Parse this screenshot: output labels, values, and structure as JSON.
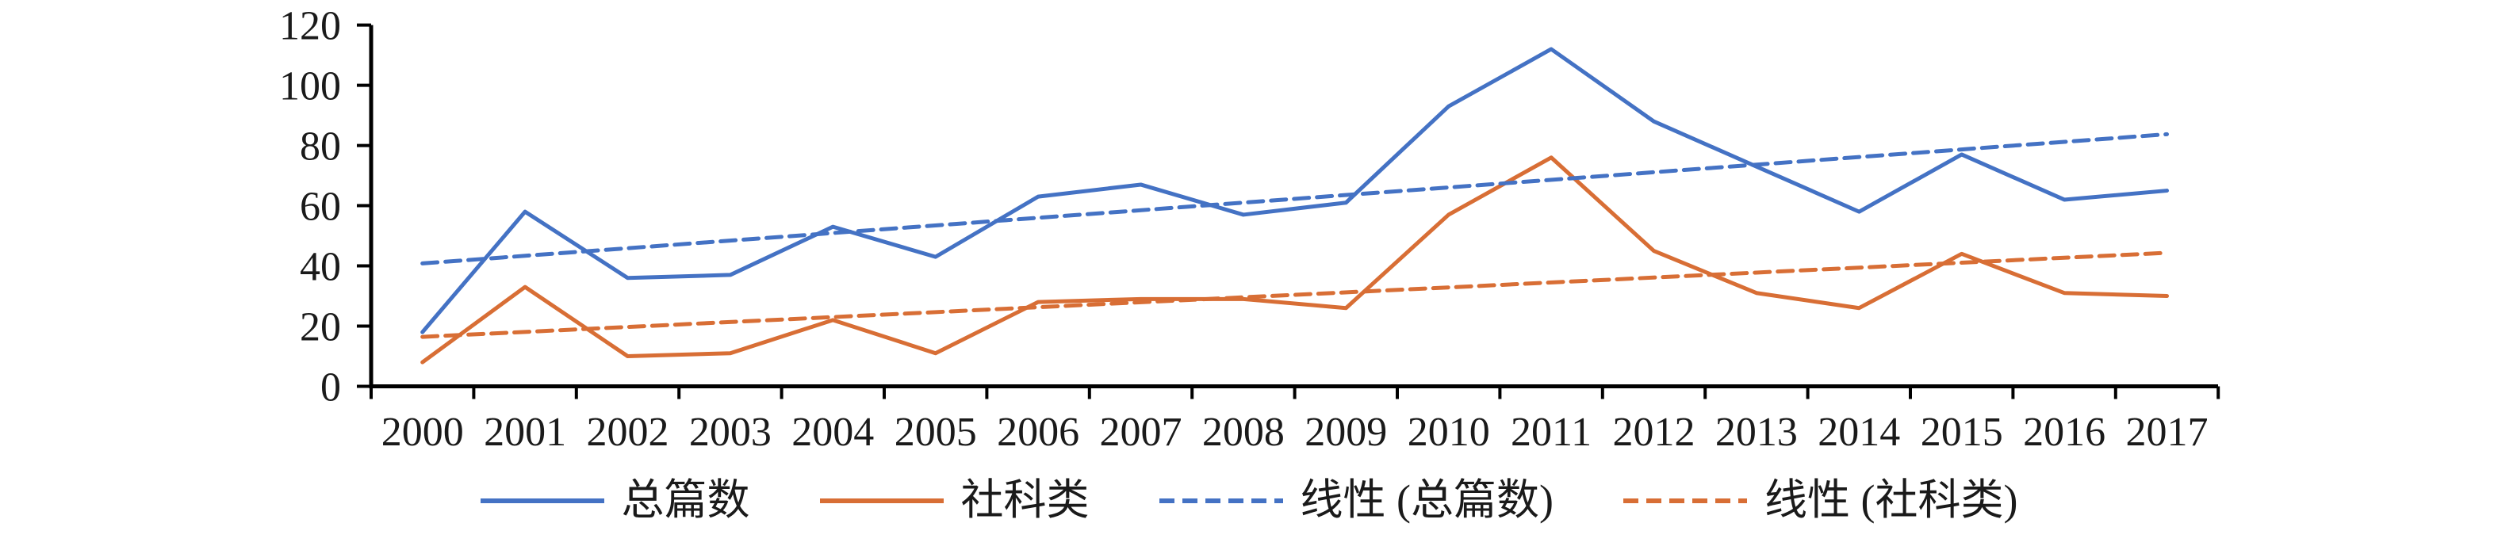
{
  "chart_data": {
    "type": "line",
    "title": "",
    "categories": [
      "2000",
      "2001",
      "2002",
      "2003",
      "2004",
      "2005",
      "2006",
      "2007",
      "2008",
      "2009",
      "2010",
      "2011",
      "2012",
      "2013",
      "2014",
      "2015",
      "2016",
      "2017"
    ],
    "series": [
      {
        "name": "总篇数",
        "values": [
          18,
          58,
          36,
          37,
          53,
          43,
          63,
          67,
          57,
          61,
          93,
          112,
          88,
          73,
          58,
          77,
          62,
          65
        ],
        "color": "#4472C4",
        "style": "solid"
      },
      {
        "name": "社科类",
        "values": [
          8,
          33,
          10,
          11,
          22,
          11,
          28,
          29,
          29,
          26,
          57,
          76,
          45,
          31,
          26,
          44,
          31,
          30
        ],
        "color": "#D86E35",
        "style": "solid"
      },
      {
        "name": "线性 (总篇数)",
        "trend_of": 0,
        "color": "#4472C4",
        "style": "dashed"
      },
      {
        "name": "线性 (社科类)",
        "trend_of": 1,
        "color": "#D86E35",
        "style": "dashed"
      }
    ],
    "xlabel": "",
    "ylabel": "",
    "y_axis": {
      "min": 0,
      "max": 120,
      "step": 20,
      "tick_labels": [
        "0",
        "20",
        "40",
        "60",
        "80",
        "100",
        "120"
      ]
    },
    "x_axis": {
      "tick_labels_visible": true
    },
    "grid": false,
    "legend": {
      "position": "bottom"
    },
    "axis_color": "#000000",
    "text_color": "#1a1a1a"
  }
}
